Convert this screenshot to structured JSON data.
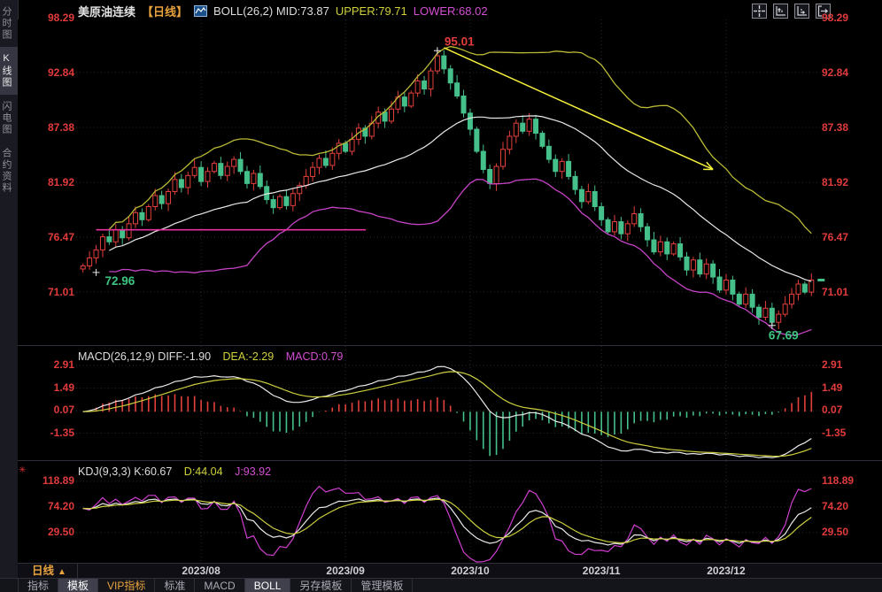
{
  "header": {
    "title": "美原油连续",
    "period_tag": "【日线】",
    "boll_label": "BOLL(26,2) MID:73.87",
    "upper_label": "UPPER:79.71",
    "lower_label": "LOWER:68.02"
  },
  "toolbar_icons": [
    {
      "name": "crosshair-icon"
    },
    {
      "name": "y-axis-scale-icon"
    },
    {
      "name": "x-axis-scale-icon"
    },
    {
      "name": "exit-chart-icon"
    }
  ],
  "sidebar": {
    "items": [
      {
        "label": "分时图",
        "active": false
      },
      {
        "label": "K线图",
        "active": true
      },
      {
        "label": "闪电图",
        "active": false
      },
      {
        "label": "合约资料",
        "active": false
      }
    ]
  },
  "macd_panel": {
    "header_white": "MACD(26,12,9) DIFF:-1.90",
    "header_yellow": "DEA:-2.29",
    "header_magenta": "MACD:0.79"
  },
  "kdj_panel": {
    "header_white": "KDJ(9,3,3) K:60.67",
    "header_yellow": "D:44.04",
    "header_magenta": "J:93.92"
  },
  "x_axis": {
    "period_label": "日线",
    "period_arrow": "▲",
    "dates": [
      "2023/08",
      "2023/09",
      "2023/10",
      "2023/11",
      "2023/12"
    ]
  },
  "bottom_bar": {
    "tabs": [
      {
        "label": "指标",
        "active": false,
        "vip": false
      },
      {
        "label": "模板",
        "active": true,
        "vip": false
      },
      {
        "label": "VIP指标",
        "active": false,
        "vip": true
      },
      {
        "label": "标准",
        "active": false,
        "vip": false
      },
      {
        "label": "MACD",
        "active": false,
        "vip": false
      },
      {
        "label": "BOLL",
        "active": true,
        "vip": false
      },
      {
        "label": "另存模板",
        "active": false,
        "vip": false
      },
      {
        "label": "管理模板",
        "active": false,
        "vip": false
      }
    ]
  },
  "colors": {
    "axis_red": "#e23b3b",
    "candle_up": "#e4403c",
    "candle_down": "#45c08a",
    "boll_upper": "#b9ba35",
    "boll_mid": "#e9e9e9",
    "boll_lower": "#c643c6",
    "dea_yellow": "#cccf3f",
    "j_magenta": "#cf3ecf",
    "hline_pink": "#e8309f",
    "arrow_yellow": "#f7f13c",
    "green_text": "#3cc583",
    "red_text": "#e23b3b",
    "grid": "#2b2b2b"
  },
  "chart_data": {
    "type": "candlestick",
    "symbol": "美原油连续",
    "period": "日线",
    "price_axis_ticks": [
      98.29,
      92.84,
      87.38,
      81.92,
      76.47,
      71.01
    ],
    "macd_axis_ticks": [
      2.91,
      1.49,
      0.07,
      -1.35
    ],
    "kdj_axis_ticks": [
      118.89,
      74.2,
      29.5
    ],
    "boll_params": {
      "n": 26,
      "k": 2,
      "mid": 73.87,
      "upper": 79.71,
      "lower": 68.02
    },
    "macd_params": {
      "slow": 26,
      "fast": 12,
      "signal": 9,
      "diff": -1.9,
      "dea": -2.29,
      "macd": 0.79
    },
    "kdj_params": {
      "n": 9,
      "m1": 3,
      "m2": 3,
      "k": 60.67,
      "d": 44.04,
      "j": 93.92
    },
    "date_tick_indices": [
      18,
      40,
      59,
      79,
      98
    ],
    "candles": {
      "first_open": 73.3,
      "closes": [
        73.6,
        74.4,
        75.2,
        76.5,
        76.0,
        77.2,
        76.4,
        77.8,
        78.9,
        78.2,
        79.5,
        80.6,
        79.8,
        81.0,
        82.2,
        81.4,
        82.6,
        83.4,
        82.0,
        83.0,
        83.8,
        82.6,
        83.5,
        84.2,
        83.0,
        81.8,
        82.8,
        81.5,
        80.2,
        79.4,
        80.5,
        79.6,
        80.8,
        81.6,
        82.5,
        83.4,
        84.3,
        83.6,
        84.8,
        85.8,
        85.0,
        86.2,
        87.3,
        86.5,
        87.8,
        88.9,
        88.0,
        89.2,
        90.4,
        89.5,
        90.8,
        92.0,
        91.2,
        93.0,
        94.5,
        93.2,
        91.8,
        90.5,
        88.8,
        87.2,
        85.0,
        83.2,
        81.8,
        83.5,
        85.2,
        86.5,
        87.8,
        87.0,
        88.2,
        86.8,
        85.5,
        84.2,
        83.0,
        84.0,
        82.5,
        81.2,
        80.0,
        81.0,
        79.5,
        78.2,
        77.0,
        78.0,
        76.8,
        77.8,
        78.8,
        77.5,
        76.2,
        75.0,
        76.0,
        74.8,
        75.8,
        74.5,
        73.2,
        74.2,
        72.8,
        73.8,
        72.5,
        71.2,
        72.2,
        70.8,
        69.8,
        70.8,
        69.5,
        68.5,
        69.4,
        68.0,
        68.8,
        69.8,
        70.8,
        71.8,
        71.0,
        72.2
      ],
      "overrides": {
        "0": {
          "low": 72.96
        },
        "54": {
          "high": 95.01
        },
        "105": {
          "low": 67.69
        }
      }
    },
    "annotations": {
      "peak_label": {
        "text": "95.01",
        "index": 54,
        "price": 95.01
      },
      "start_low_label": {
        "text": "72.96",
        "index": 2,
        "price": 72.96
      },
      "end_low_label": {
        "text": "67.69",
        "index": 105,
        "price": 67.69
      },
      "hline": {
        "price": 77.2,
        "from_index": 2,
        "to_index": 35
      },
      "trend_arrow": {
        "from": {
          "index": 55,
          "price": 95.3
        },
        "to": {
          "index": 96,
          "price": 83.2
        }
      },
      "last_price_dash": {
        "price": 72.2
      }
    }
  }
}
